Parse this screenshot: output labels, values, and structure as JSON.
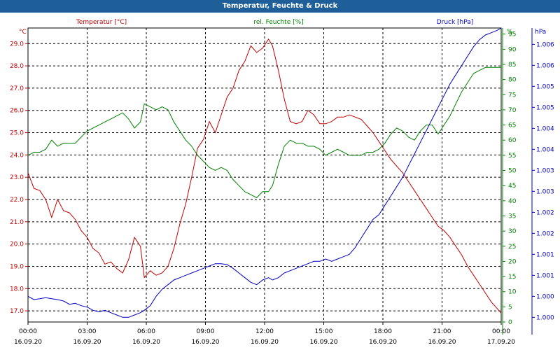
{
  "window": {
    "title": "Temperatur, Feuchte & Druck"
  },
  "chart_data": {
    "type": "line",
    "title": "Temperatur, Feuchte & Druck",
    "grid": true,
    "x_ticks": [
      {
        "time": "00:00",
        "date": "16.09.20"
      },
      {
        "time": "03:00",
        "date": "16.09.20"
      },
      {
        "time": "06:00",
        "date": "16.09.20"
      },
      {
        "time": "09:00",
        "date": "16.09.20"
      },
      {
        "time": "12:00",
        "date": "16.09.20"
      },
      {
        "time": "15:00",
        "date": "16.09.20"
      },
      {
        "time": "18:00",
        "date": "16.09.20"
      },
      {
        "time": "21:00",
        "date": "16.09.20"
      },
      {
        "time": "00:00",
        "date": "17.09.20"
      }
    ],
    "x_range_hours": [
      0,
      24
    ],
    "axes": {
      "left": {
        "unit": "°C",
        "label": "Temperatur [°C]",
        "color": "#c00000",
        "range": [
          16.5,
          29.7
        ],
        "ticks": [
          "17.0",
          "18.0",
          "19.0",
          "20.0",
          "21.0",
          "22.0",
          "23.0",
          "24.0",
          "25.0",
          "26.0",
          "27.0",
          "28.0",
          "29.0"
        ]
      },
      "right1": {
        "unit": "%",
        "label": "rel. Feuchte [%]",
        "color": "#008000",
        "range": [
          0,
          97
        ],
        "ticks": [
          "0",
          "5",
          "10",
          "15",
          "20",
          "25",
          "30",
          "35",
          "40",
          "45",
          "50",
          "55",
          "60",
          "65",
          "70",
          "75",
          "80",
          "85",
          "90",
          "95"
        ]
      },
      "right2": {
        "unit": "hPa",
        "label": "Druck [hPa]",
        "color": "#0000c0",
        "range": [
          999.9,
          1006.2
        ],
        "ticks": [
          "1.000",
          "1.000",
          "1.001",
          "1.001",
          "1.002",
          "1.002",
          "1.003",
          "1.003",
          "1.004",
          "1.004",
          "1.005",
          "1.005",
          "1.006",
          "1.006"
        ]
      }
    },
    "series": [
      {
        "name": "Temperatur [°C]",
        "axis": "left",
        "color": "#c00000",
        "x": [
          0,
          0.3,
          0.6,
          0.9,
          1.2,
          1.5,
          1.8,
          2.1,
          2.4,
          2.7,
          3.0,
          3.3,
          3.6,
          3.9,
          4.2,
          4.5,
          4.8,
          5.1,
          5.4,
          5.7,
          5.9,
          6.2,
          6.5,
          6.8,
          7.1,
          7.4,
          7.7,
          8.0,
          8.3,
          8.6,
          8.9,
          9.2,
          9.5,
          9.8,
          10.1,
          10.4,
          10.7,
          11.0,
          11.3,
          11.6,
          11.9,
          12.2,
          12.4,
          12.7,
          13.0,
          13.3,
          13.6,
          13.9,
          14.2,
          14.5,
          14.8,
          15.1,
          15.4,
          15.7,
          16.0,
          16.3,
          16.6,
          16.9,
          17.2,
          17.5,
          17.8,
          18.1,
          18.4,
          18.7,
          19.0,
          19.3,
          19.6,
          19.9,
          20.2,
          20.5,
          20.8,
          21.1,
          21.4,
          21.7,
          22.0,
          22.3,
          22.6,
          22.9,
          23.2,
          23.5,
          23.8,
          24.0
        ],
        "values": [
          23.2,
          22.5,
          22.4,
          22.0,
          21.2,
          22.0,
          21.5,
          21.4,
          21.1,
          20.6,
          20.3,
          19.8,
          19.6,
          19.1,
          19.2,
          18.9,
          18.7,
          19.3,
          20.3,
          19.9,
          18.5,
          18.8,
          18.6,
          18.7,
          19.0,
          19.8,
          20.9,
          21.8,
          23.0,
          24.3,
          24.7,
          25.5,
          25.0,
          25.8,
          26.6,
          27.0,
          27.8,
          28.2,
          28.9,
          28.6,
          28.8,
          29.2,
          28.9,
          27.8,
          26.5,
          25.5,
          25.4,
          25.5,
          26.0,
          25.8,
          25.4,
          25.4,
          25.5,
          25.7,
          25.7,
          25.8,
          25.7,
          25.6,
          25.3,
          25.0,
          24.6,
          24.2,
          23.8,
          23.5,
          23.2,
          22.8,
          22.4,
          22.0,
          21.6,
          21.2,
          20.8,
          20.6,
          20.3,
          19.9,
          19.5,
          19.0,
          18.6,
          18.2,
          17.8,
          17.4,
          17.1,
          16.9
        ]
      },
      {
        "name": "rel. Feuchte [%]",
        "axis": "right1",
        "color": "#008000",
        "x": [
          0,
          0.3,
          0.6,
          0.9,
          1.2,
          1.5,
          1.8,
          2.1,
          2.4,
          2.7,
          3.0,
          3.3,
          3.6,
          3.9,
          4.2,
          4.5,
          4.8,
          5.1,
          5.4,
          5.7,
          5.9,
          6.2,
          6.5,
          6.8,
          7.1,
          7.4,
          7.7,
          8.0,
          8.3,
          8.6,
          8.9,
          9.2,
          9.5,
          9.8,
          10.1,
          10.4,
          10.7,
          11.0,
          11.3,
          11.6,
          11.9,
          12.2,
          12.4,
          12.7,
          13.0,
          13.3,
          13.6,
          13.9,
          14.2,
          14.5,
          14.8,
          15.1,
          15.4,
          15.7,
          16.0,
          16.3,
          16.6,
          16.9,
          17.2,
          17.5,
          17.8,
          18.1,
          18.4,
          18.7,
          19.0,
          19.3,
          19.6,
          19.9,
          20.2,
          20.5,
          20.8,
          21.1,
          21.4,
          21.7,
          22.0,
          22.3,
          22.6,
          22.9,
          23.2,
          23.5,
          23.8,
          24.0
        ],
        "values": [
          55,
          56,
          56,
          57,
          60,
          58,
          59,
          59,
          59,
          61,
          63,
          64,
          65,
          66,
          67,
          68,
          69,
          67,
          64,
          66,
          72,
          71,
          70,
          71,
          70,
          66,
          63,
          60,
          58,
          55,
          53,
          51,
          50,
          51,
          50,
          47,
          45,
          43,
          42,
          41,
          43,
          43,
          45,
          52,
          58,
          60,
          59,
          59,
          58,
          58,
          57,
          55,
          56,
          57,
          56,
          55,
          55,
          55,
          56,
          56,
          57,
          59,
          62,
          64,
          63,
          61,
          60,
          63,
          65,
          65,
          62,
          65,
          68,
          72,
          76,
          79,
          82,
          83,
          84,
          84,
          84,
          84
        ]
      },
      {
        "name": "Druck [hPa]",
        "axis": "right2",
        "color": "#0000c0",
        "x": [
          0,
          0.3,
          0.6,
          0.9,
          1.2,
          1.5,
          1.8,
          2.1,
          2.4,
          2.7,
          3.0,
          3.3,
          3.6,
          3.9,
          4.2,
          4.5,
          4.8,
          5.1,
          5.4,
          5.7,
          5.9,
          6.2,
          6.5,
          6.8,
          7.1,
          7.4,
          7.7,
          8.0,
          8.3,
          8.6,
          8.9,
          9.2,
          9.5,
          9.8,
          10.1,
          10.4,
          10.7,
          11.0,
          11.3,
          11.6,
          11.9,
          12.2,
          12.4,
          12.7,
          13.0,
          13.3,
          13.6,
          13.9,
          14.2,
          14.5,
          14.8,
          15.1,
          15.4,
          15.7,
          16.0,
          16.3,
          16.6,
          16.9,
          17.2,
          17.5,
          17.8,
          18.1,
          18.4,
          18.7,
          19.0,
          19.3,
          19.6,
          19.9,
          20.2,
          20.5,
          20.8,
          21.1,
          21.4,
          21.7,
          22.0,
          22.3,
          22.6,
          22.9,
          23.2,
          23.5,
          23.8,
          24.0
        ],
        "values": [
          1000.45,
          1000.38,
          1000.4,
          1000.42,
          1000.4,
          1000.38,
          1000.35,
          1000.28,
          1000.3,
          1000.25,
          1000.22,
          1000.15,
          1000.12,
          1000.15,
          1000.1,
          1000.05,
          1000.0,
          1000.0,
          1000.05,
          1000.1,
          1000.15,
          1000.25,
          1000.45,
          1000.6,
          1000.7,
          1000.8,
          1000.85,
          1000.9,
          1000.95,
          1001.0,
          1001.05,
          1001.1,
          1001.15,
          1001.15,
          1001.13,
          1001.05,
          1000.95,
          1000.85,
          1000.75,
          1000.7,
          1000.8,
          1000.85,
          1000.8,
          1000.85,
          1000.95,
          1001.0,
          1001.05,
          1001.1,
          1001.15,
          1001.2,
          1001.2,
          1001.25,
          1001.2,
          1001.25,
          1001.3,
          1001.35,
          1001.5,
          1001.7,
          1001.9,
          1002.1,
          1002.2,
          1002.4,
          1002.6,
          1002.8,
          1003.0,
          1003.25,
          1003.5,
          1003.75,
          1004.0,
          1004.25,
          1004.5,
          1004.75,
          1005.0,
          1005.2,
          1005.4,
          1005.6,
          1005.8,
          1005.95,
          1006.05,
          1006.1,
          1006.15,
          1006.2
        ]
      }
    ]
  }
}
